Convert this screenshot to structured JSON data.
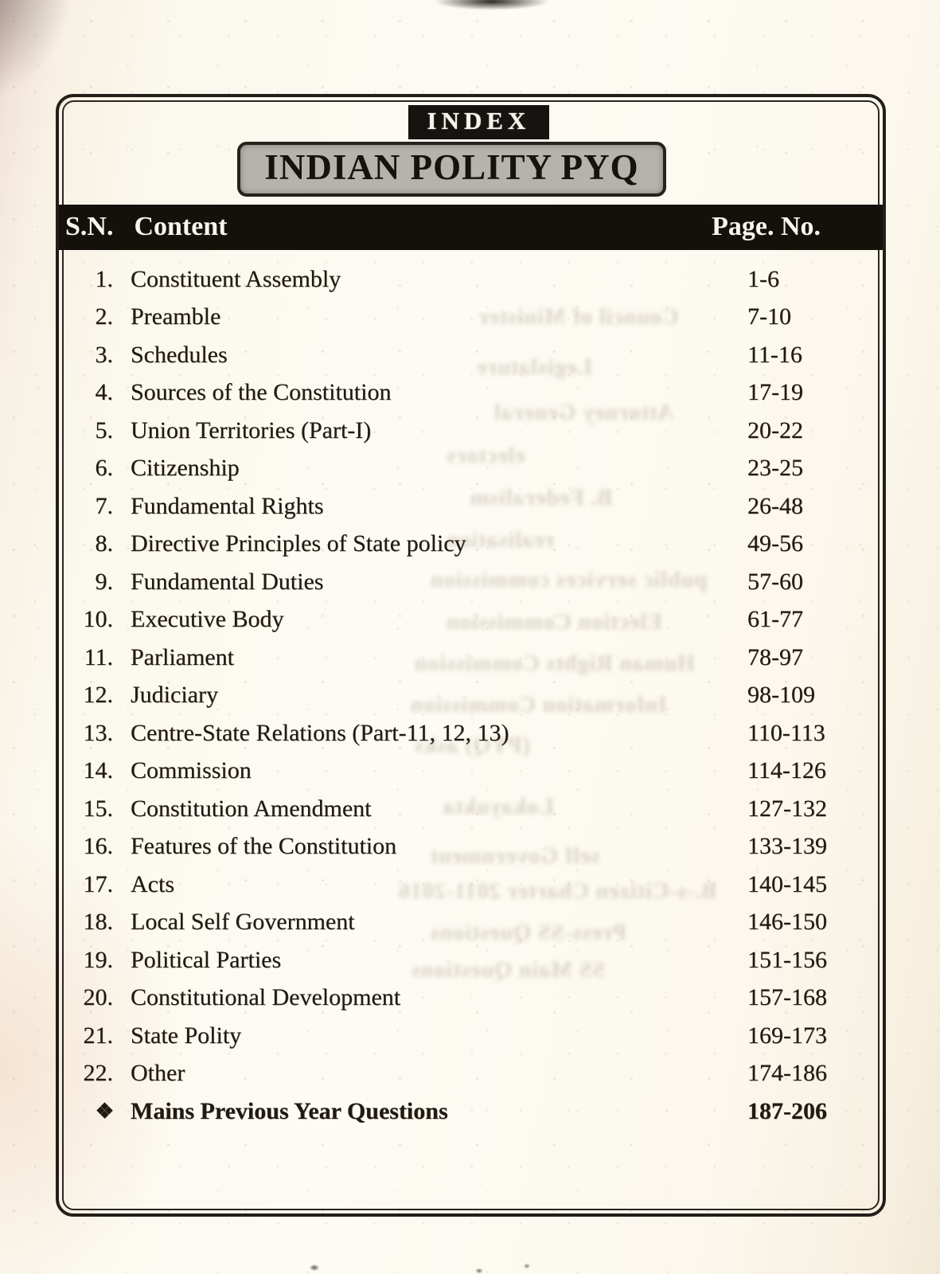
{
  "header": {
    "index_label": "INDEX",
    "title": "INDIAN POLITY PYQ"
  },
  "table": {
    "headers": {
      "sn": "S.N.",
      "content": "Content",
      "page": "Page. No."
    },
    "rows": [
      {
        "sn": "1.",
        "content": "Constituent Assembly",
        "pages": "1-6"
      },
      {
        "sn": "2.",
        "content": "Preamble",
        "pages": "7-10"
      },
      {
        "sn": "3.",
        "content": "Schedules",
        "pages": "11-16"
      },
      {
        "sn": "4.",
        "content": "Sources of the Constitution",
        "pages": "17-19"
      },
      {
        "sn": "5.",
        "content": "Union Territories (Part-I)",
        "pages": "20-22"
      },
      {
        "sn": "6.",
        "content": "Citizenship",
        "pages": "23-25"
      },
      {
        "sn": "7.",
        "content": "Fundamental Rights",
        "pages": "26-48"
      },
      {
        "sn": "8.",
        "content": "Directive Principles of State policy",
        "pages": "49-56"
      },
      {
        "sn": "9.",
        "content": "Fundamental Duties",
        "pages": "57-60"
      },
      {
        "sn": "10.",
        "content": "Executive Body",
        "pages": "61-77"
      },
      {
        "sn": "11.",
        "content": "Parliament",
        "pages": "78-97"
      },
      {
        "sn": "12.",
        "content": "Judiciary",
        "pages": "98-109"
      },
      {
        "sn": "13.",
        "content": "Centre-State Relations (Part-11, 12, 13)",
        "pages": "110-113"
      },
      {
        "sn": "14.",
        "content": "Commission",
        "pages": "114-126"
      },
      {
        "sn": "15.",
        "content": "Constitution Amendment",
        "pages": "127-132"
      },
      {
        "sn": "16.",
        "content": "Features of the Constitution",
        "pages": "133-139"
      },
      {
        "sn": "17.",
        "content": "Acts",
        "pages": "140-145"
      },
      {
        "sn": "18.",
        "content": "Local Self Government",
        "pages": "146-150"
      },
      {
        "sn": "19.",
        "content": "Political Parties",
        "pages": "151-156"
      },
      {
        "sn": "20.",
        "content": "Constitutional Development",
        "pages": "157-168"
      },
      {
        "sn": "21.",
        "content": "State Polity",
        "pages": "169-173"
      },
      {
        "sn": "22.",
        "content": "Other",
        "pages": "174-186"
      },
      {
        "sn": "❖",
        "content": "Mains Previous Year Questions",
        "pages": "187-206",
        "bold": true
      }
    ]
  },
  "bleed_through": {
    "fragments": [
      "Council of Minister",
      "Legislature",
      "Attorney General",
      "electors",
      "B. Federalism",
      "realisation",
      "public services commission",
      "Election Commission",
      "Human Rights Commission",
      "Information Commission",
      "(PYQ) asks",
      "Lokayukta",
      "self Government",
      "B.-s-Citizen Charter 2011-2016",
      "Press-SS Questions",
      "SS Main Questions"
    ]
  }
}
